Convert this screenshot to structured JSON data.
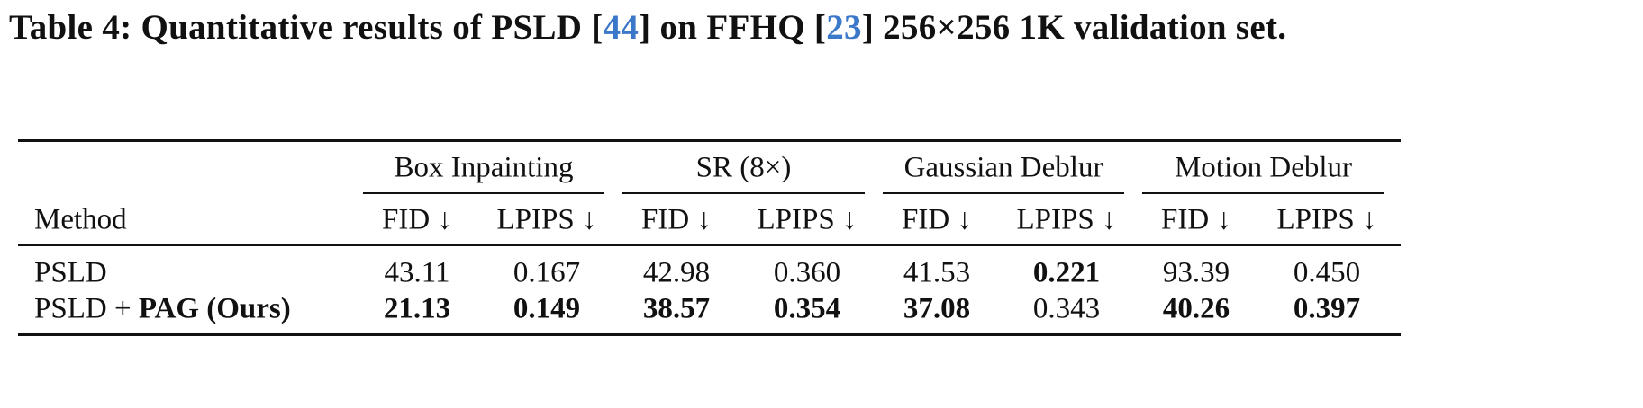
{
  "caption": {
    "text_1": "Table 4: Quantitative results of PSLD [",
    "ref_1": "44",
    "text_2": "] on FFHQ [",
    "ref_2": "23",
    "text_3": "] 256×256 1K validation set."
  },
  "table": {
    "groups": [
      "Box Inpainting",
      "SR (8×)",
      "Gaussian Deblur",
      "Motion Deblur"
    ],
    "method_header": "Method",
    "metrics": [
      "FID ↓",
      "LPIPS ↓",
      "FID ↓",
      "LPIPS ↓",
      "FID ↓",
      "LPIPS ↓",
      "FID ↓",
      "LPIPS ↓"
    ],
    "rows": [
      {
        "method": [
          "PSLD"
        ],
        "method_bold": [
          false
        ],
        "values": [
          "43.11",
          "0.167",
          "42.98",
          "0.360",
          "41.53",
          "0.221",
          "93.39",
          "0.450"
        ],
        "bold": [
          false,
          false,
          false,
          false,
          false,
          true,
          false,
          false
        ]
      },
      {
        "method": [
          "PSLD + ",
          "PAG (Ours)"
        ],
        "method_bold": [
          false,
          true
        ],
        "values": [
          "21.13",
          "0.149",
          "38.57",
          "0.354",
          "37.08",
          "0.343",
          "40.26",
          "0.397"
        ],
        "bold": [
          true,
          true,
          true,
          true,
          true,
          false,
          true,
          true
        ]
      }
    ]
  }
}
